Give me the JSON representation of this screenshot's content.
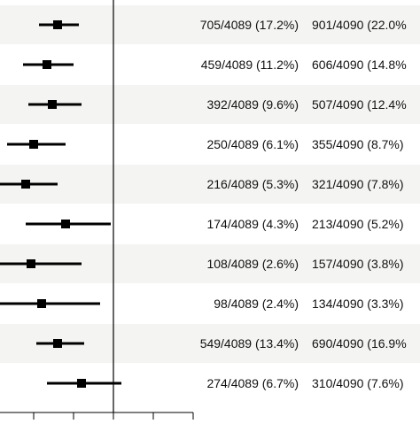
{
  "chart_data": {
    "type": "forest",
    "reference_line": 1.0,
    "x_axis_visible_ticks": 4,
    "rows": [
      {
        "group_a": "705/4089 (17.2%)",
        "group_b": "901/4090 (22.0%",
        "estimate": 0.79,
        "ci": [
          0.72,
          0.87
        ],
        "shaded": true
      },
      {
        "group_a": "459/4089 (11.2%)",
        "group_b": "606/4090 (14.8%",
        "estimate": 0.75,
        "ci": [
          0.66,
          0.85
        ],
        "shaded": false
      },
      {
        "group_a": "392/4089 (9.6%)",
        "group_b": "507/4090 (12.4%",
        "estimate": 0.77,
        "ci": [
          0.68,
          0.88
        ],
        "shaded": true
      },
      {
        "group_a": "250/4089 (6.1%)",
        "group_b": "355/4090 (8.7%)",
        "estimate": 0.7,
        "ci": [
          0.6,
          0.82
        ],
        "shaded": false
      },
      {
        "group_a": "216/4089 (5.3%)",
        "group_b": "321/4090 (7.8%)",
        "estimate": 0.67,
        "ci": [
          0.57,
          0.79
        ],
        "shaded": true
      },
      {
        "group_a": "174/4089 (4.3%)",
        "group_b": "213/4090 (5.2%)",
        "estimate": 0.82,
        "ci": [
          0.67,
          0.99
        ],
        "shaded": false
      },
      {
        "group_a": "108/4089 (2.6%)",
        "group_b": "157/4090 (3.8%)",
        "estimate": 0.69,
        "ci": [
          0.54,
          0.88
        ],
        "shaded": true
      },
      {
        "group_a": "98/4089 (2.4%)",
        "group_b": "134/4090 (3.3%)",
        "estimate": 0.73,
        "ci": [
          0.56,
          0.95
        ],
        "shaded": false
      },
      {
        "group_a": "549/4089 (13.4%)",
        "group_b": "690/4090 (16.9%",
        "estimate": 0.79,
        "ci": [
          0.71,
          0.89
        ],
        "shaded": true
      },
      {
        "group_a": "274/4089 (6.7%)",
        "group_b": "310/4090 (7.6%)",
        "estimate": 0.88,
        "ci": [
          0.75,
          1.03
        ],
        "shaded": false
      }
    ]
  }
}
